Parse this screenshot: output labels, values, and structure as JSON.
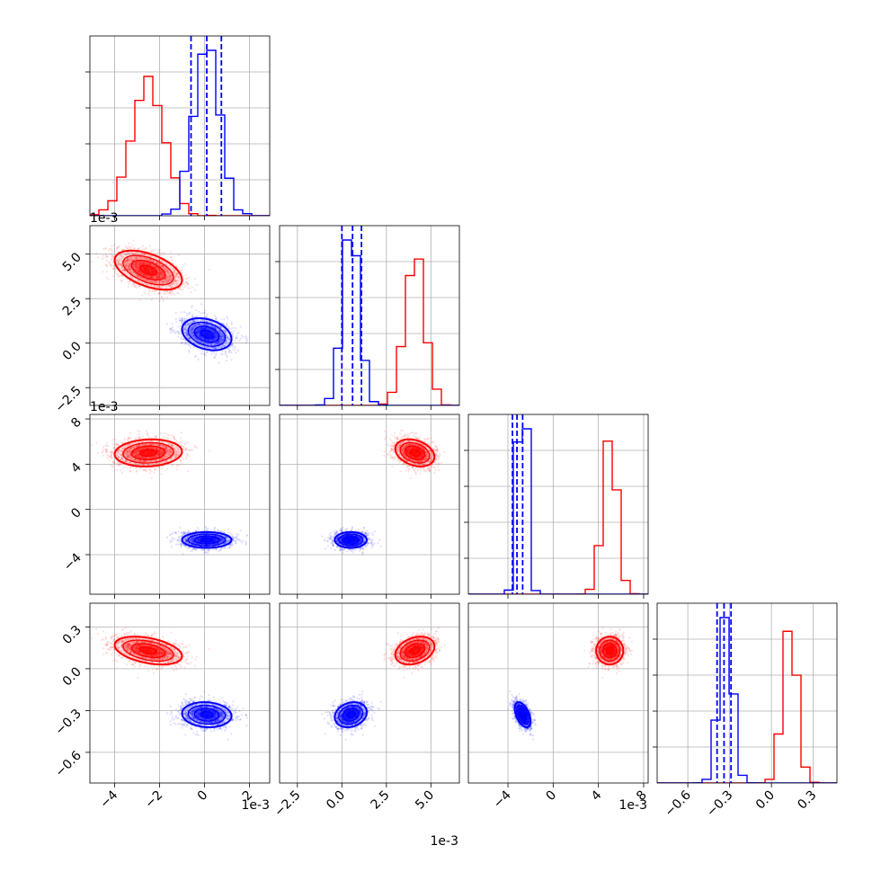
{
  "chart_data": {
    "type": "corner",
    "title": "",
    "parameters": [
      "",
      "",
      "",
      ""
    ],
    "offset_labels": [
      "1e-3",
      "1e-3",
      "1e-3"
    ],
    "colors": {
      "red": "#ff0000",
      "blue": "#0000ff",
      "grid": "#b0b0b0"
    },
    "grid": true,
    "axes": [
      {
        "range": [
          -5.1,
          2.9
        ],
        "ticks": [
          -4,
          -2,
          0,
          2
        ],
        "tick_labels": [
          "−4",
          "−2",
          "0",
          "2"
        ]
      },
      {
        "range": [
          -3.5,
          6.6
        ],
        "ticks": [
          -2.5,
          0.0,
          2.5,
          5.0
        ],
        "tick_labels": [
          "−2.5",
          "0.0",
          "2.5",
          "5.0"
        ]
      },
      {
        "range": [
          -7.5,
          8.4
        ],
        "ticks": [
          -4,
          0,
          4,
          8
        ],
        "tick_labels": [
          "−4",
          "0",
          "4",
          "8"
        ]
      },
      {
        "range": [
          -0.82,
          0.47
        ],
        "ticks": [
          -0.6,
          -0.3,
          0.0,
          0.3
        ],
        "tick_labels": [
          "−0.6",
          "−0.3",
          "0.0",
          "0.3"
        ]
      }
    ],
    "series": [
      {
        "color": "red",
        "means": [
          -2.5,
          4.1,
          5.0,
          0.13
        ],
        "sds": [
          0.75,
          0.55,
          0.6,
          0.05
        ],
        "corr": [
          [
            1,
            -0.5,
            0.1,
            -0.4
          ],
          [
            -0.5,
            1,
            -0.3,
            0.3
          ],
          [
            0.1,
            -0.3,
            1,
            0.0
          ],
          [
            -0.4,
            0.3,
            0.0,
            1
          ]
        ]
      },
      {
        "color": "blue",
        "means": [
          0.1,
          0.5,
          -2.7,
          -0.33
        ],
        "sds": [
          0.55,
          0.45,
          0.35,
          0.045
        ],
        "corr": [
          [
            1,
            -0.3,
            0.0,
            -0.1
          ],
          [
            -0.3,
            1,
            0.0,
            0.2
          ],
          [
            0.0,
            0.0,
            1,
            -0.5
          ],
          [
            -0.1,
            0.2,
            -0.5,
            1
          ]
        ]
      }
    ],
    "quantile_lines": {
      "color": "blue",
      "values": [
        [
          -0.6,
          0.1,
          0.75
        ],
        [
          0.0,
          0.6,
          1.1
        ],
        [
          -3.6,
          -3.2,
          -2.7
        ],
        [
          -0.39,
          -0.34,
          -0.29
        ]
      ]
    }
  }
}
